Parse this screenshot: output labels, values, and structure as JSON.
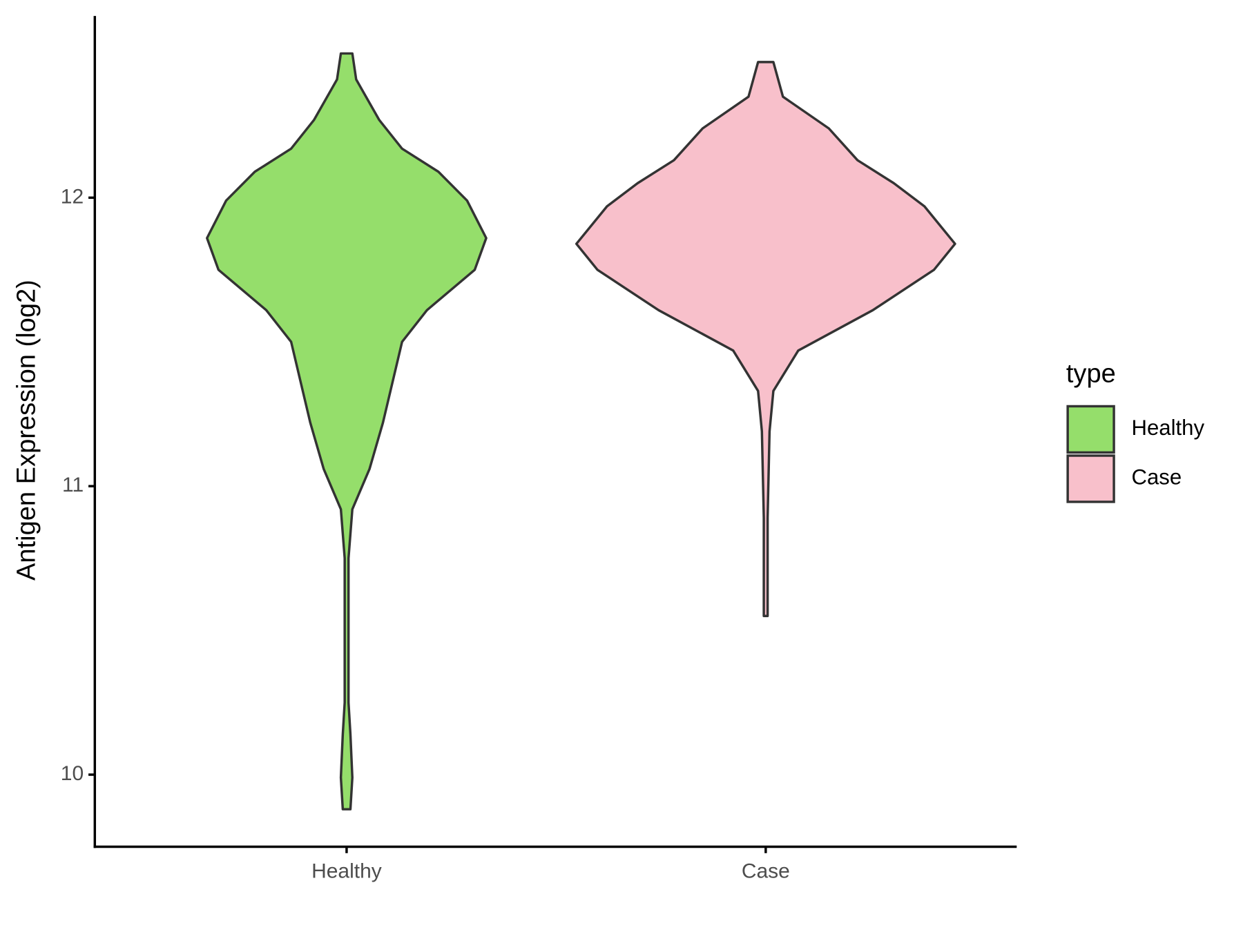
{
  "chart_data": {
    "type": "violin",
    "y_label": "Antigen Expression (log2)",
    "categories": [
      "Healthy",
      "Case"
    ],
    "legend_title": "type",
    "legend_position": "right",
    "ylim": [
      9.75,
      12.63
    ],
    "yticks": [
      10,
      11,
      12
    ],
    "series": [
      {
        "name": "Healthy",
        "color": "#95de6b",
        "y": [
          12.5,
          12.41,
          12.27,
          12.17,
          12.09,
          11.99,
          11.86,
          11.75,
          11.61,
          11.5,
          11.36,
          11.22,
          11.06,
          10.92,
          10.75,
          10.25,
          10.14,
          9.99,
          9.88
        ],
        "density": [
          0.03,
          0.05,
          0.17,
          0.29,
          0.48,
          0.63,
          0.73,
          0.67,
          0.42,
          0.29,
          0.24,
          0.19,
          0.12,
          0.03,
          0.01,
          0.01,
          0.02,
          0.03,
          0.02
        ]
      },
      {
        "name": "Case",
        "color": "#f8c0cb",
        "y": [
          12.47,
          12.35,
          12.24,
          12.13,
          12.05,
          11.97,
          11.84,
          11.75,
          11.61,
          11.47,
          11.33,
          11.19,
          10.89,
          10.7,
          10.55
        ],
        "density": [
          0.04,
          0.09,
          0.33,
          0.48,
          0.67,
          0.83,
          0.99,
          0.88,
          0.56,
          0.17,
          0.04,
          0.02,
          0.01,
          0.01,
          0.01
        ]
      }
    ]
  }
}
